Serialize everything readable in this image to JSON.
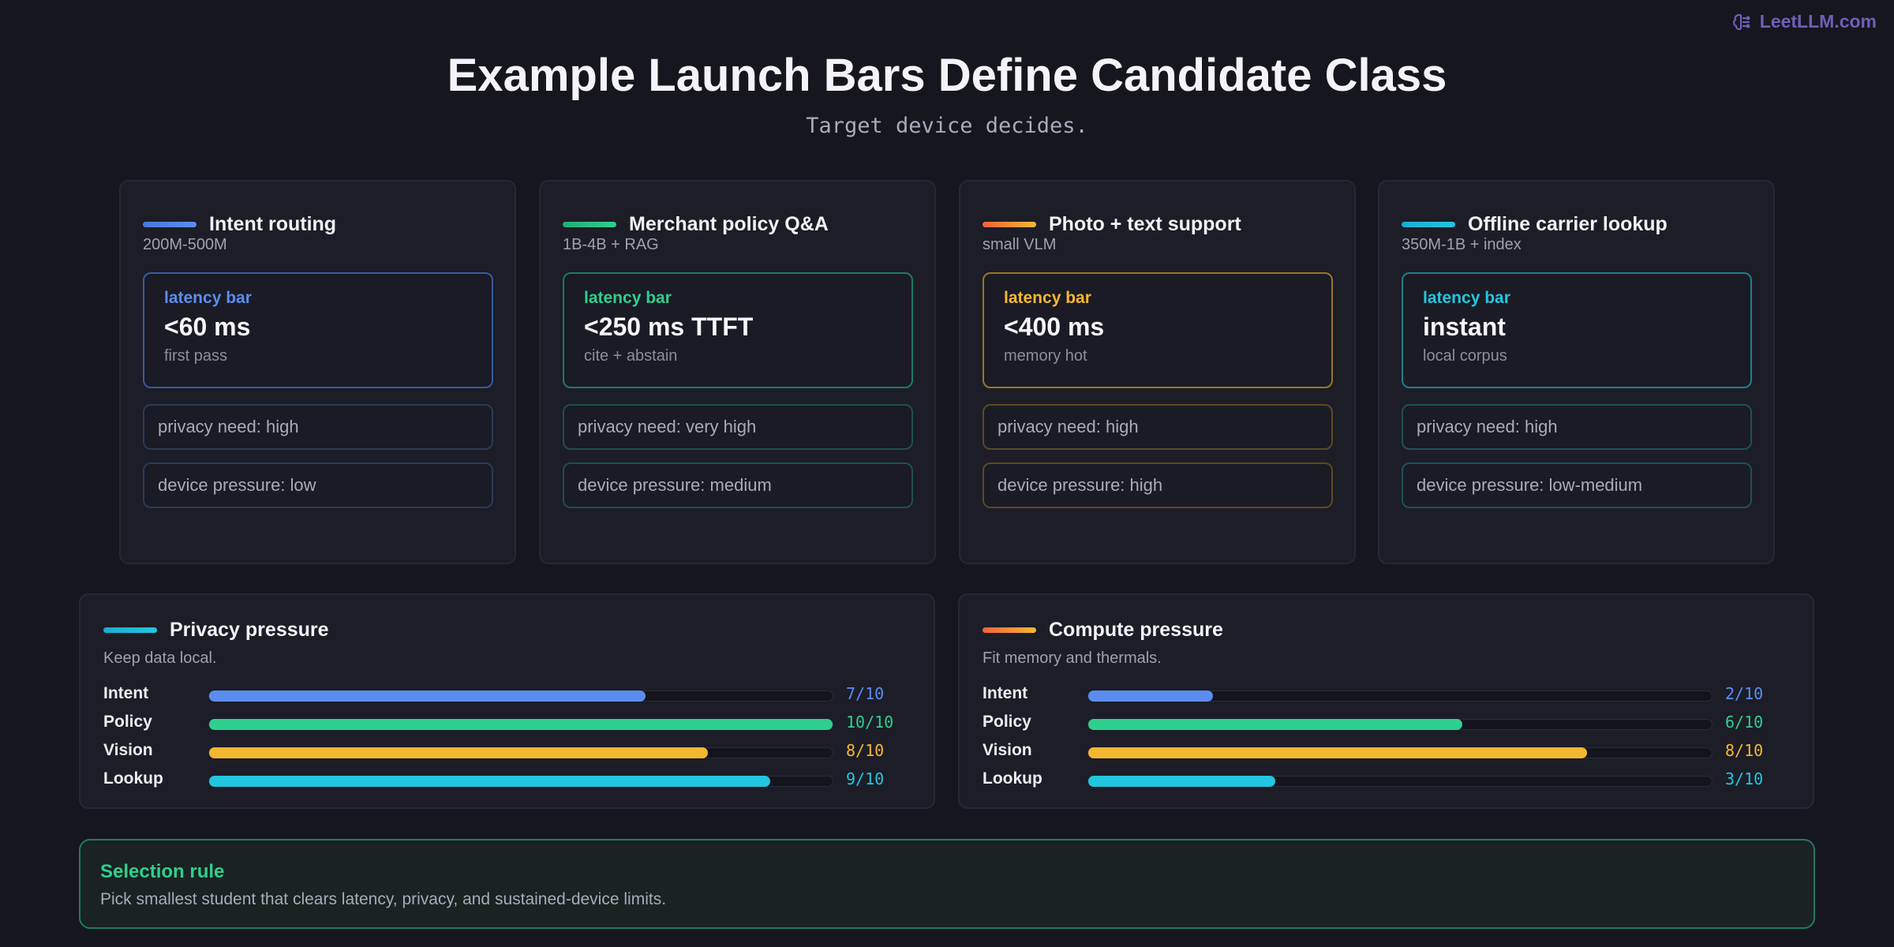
{
  "brand": {
    "text": "LeetLLM.com",
    "icon": "brain-icon",
    "color": "#6e5fb8"
  },
  "header": {
    "title": "Example Launch Bars Define Candidate Class",
    "subtitle": "Target device decides."
  },
  "cards": [
    {
      "title": "Intent routing",
      "subtitle": "200M-500M",
      "accent": "#5b8def",
      "accent2": "#4a79de",
      "border": "#3a5aa0",
      "tag_border": "#2c3a55",
      "latency_label": "latency bar",
      "latency_value": "<60 ms",
      "latency_note": "first pass",
      "tags": [
        "privacy need: high",
        "device pressure: low"
      ]
    },
    {
      "title": "Merchant policy Q&A",
      "subtitle": "1B-4B + RAG",
      "accent": "#2fcf8e",
      "accent2": "#1fae74",
      "border": "#1f7a60",
      "tag_border": "#1f5048",
      "latency_label": "latency bar",
      "latency_value": "<250 ms TTFT",
      "latency_note": "cite + abstain",
      "tags": [
        "privacy need: very high",
        "device pressure: medium"
      ]
    },
    {
      "title": "Photo + text support",
      "subtitle": "small VLM",
      "accent": "#f5b731",
      "accent2": "#f2603a",
      "border": "#9a7523",
      "tag_border": "#5a4a25",
      "latency_label": "latency bar",
      "latency_value": "<400 ms",
      "latency_note": "memory hot",
      "tags": [
        "privacy need: high",
        "device pressure: high"
      ]
    },
    {
      "title": "Offline carrier lookup",
      "subtitle": "350M-1B + index",
      "accent": "#22c6e0",
      "accent2": "#1aaed0",
      "border": "#1f7f8a",
      "tag_border": "#1f5058",
      "latency_label": "latency bar",
      "latency_value": "instant",
      "latency_note": "local corpus",
      "tags": [
        "privacy need: high",
        "device pressure: low-medium"
      ]
    }
  ],
  "panels": [
    {
      "title": "Privacy pressure",
      "subtitle": "Keep data local.",
      "accent": "#22c6e0",
      "accent2": "#1aaed0",
      "rows": [
        {
          "label": "Intent",
          "value": 7,
          "display": "7/10",
          "color": "#5b8def"
        },
        {
          "label": "Policy",
          "value": 10,
          "display": "10/10",
          "color": "#2fcf8e"
        },
        {
          "label": "Vision",
          "value": 8,
          "display": "8/10",
          "color": "#f5b731"
        },
        {
          "label": "Lookup",
          "value": 9,
          "display": "9/10",
          "color": "#22c6e0"
        }
      ],
      "max": 10
    },
    {
      "title": "Compute pressure",
      "subtitle": "Fit memory and thermals.",
      "accent": "#f5b731",
      "accent2": "#f2603a",
      "rows": [
        {
          "label": "Intent",
          "value": 2,
          "display": "2/10",
          "color": "#5b8def"
        },
        {
          "label": "Policy",
          "value": 6,
          "display": "6/10",
          "color": "#2fcf8e"
        },
        {
          "label": "Vision",
          "value": 8,
          "display": "8/10",
          "color": "#f5b731"
        },
        {
          "label": "Lookup",
          "value": 3,
          "display": "3/10",
          "color": "#22c6e0"
        }
      ],
      "max": 10
    }
  ],
  "rule": {
    "title": "Selection rule",
    "text": "Pick smallest student that clears latency, privacy, and sustained-device limits."
  }
}
